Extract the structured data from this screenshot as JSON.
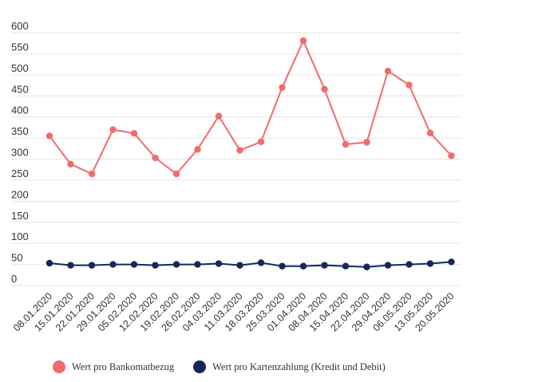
{
  "chart_data": {
    "type": "line",
    "categories": [
      "08.01.2020",
      "15.01.2020",
      "22.01.2020",
      "29.01.2020",
      "05.02.2020",
      "12.02.2020",
      "19.02.2020",
      "26.02.2020",
      "04.03.2020",
      "11.03.2020",
      "18.03.2020",
      "25.03.2020",
      "01.04.2020",
      "08.04.2020",
      "15.04.2020",
      "22.04.2020",
      "29.04.2020",
      "06.05.2020",
      "13.05.2020",
      "20.05.2020"
    ],
    "series": [
      {
        "name": "Wert pro Bankomatbezug",
        "color": "#f26b6b",
        "values": [
          355,
          288,
          265,
          370,
          361,
          303,
          265,
          323,
          402,
          321,
          341,
          470,
          581,
          466,
          335,
          340,
          509,
          476,
          362,
          308
        ]
      },
      {
        "name": "Wert pro Kartenzahlung (Kredit und Debit)",
        "color": "#14285a",
        "values": [
          53,
          48,
          48,
          50,
          50,
          48,
          50,
          50,
          52,
          48,
          54,
          46,
          46,
          48,
          46,
          44,
          48,
          50,
          52,
          56
        ]
      }
    ],
    "y_ticks": [
      0,
      50,
      100,
      150,
      200,
      250,
      300,
      350,
      400,
      450,
      500,
      550,
      600
    ],
    "ylim": [
      0,
      600
    ],
    "title": "",
    "xlabel": "",
    "ylabel": "",
    "grid": true,
    "legend_position": "bottom-left"
  }
}
